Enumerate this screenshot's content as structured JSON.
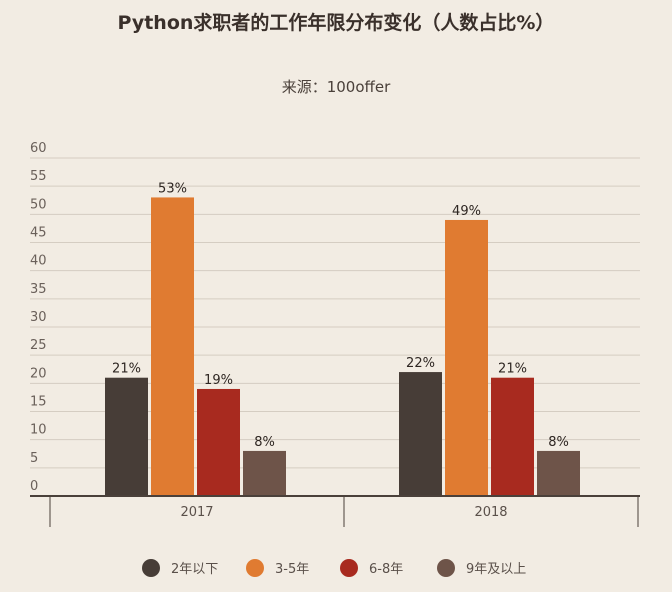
{
  "chart_data": {
    "type": "bar",
    "title": "Python求职者的工作年限分布变化（人数占比%）",
    "subtitle": "来源：100offer",
    "categories": [
      "2017",
      "2018"
    ],
    "series": [
      {
        "name": "2年以下",
        "color": "#473d37",
        "values": [
          21,
          22
        ],
        "labels": [
          "21%",
          "22%"
        ]
      },
      {
        "name": "3-5年",
        "color": "#e07b31",
        "values": [
          53,
          49
        ],
        "labels": [
          "53%",
          "49%"
        ]
      },
      {
        "name": "6-8年",
        "color": "#a82a1f",
        "values": [
          19,
          21
        ],
        "labels": [
          "19%",
          "21%"
        ]
      },
      {
        "name": "9年及以上",
        "color": "#6e5449",
        "values": [
          8,
          8
        ],
        "labels": [
          "8%",
          "8%"
        ]
      }
    ],
    "ylim": [
      0,
      60
    ],
    "yticks": [
      "0",
      "5",
      "10",
      "15",
      "20",
      "25",
      "30",
      "35",
      "40",
      "45",
      "50",
      "55",
      "60"
    ],
    "grid": true,
    "legend": "bottom"
  }
}
